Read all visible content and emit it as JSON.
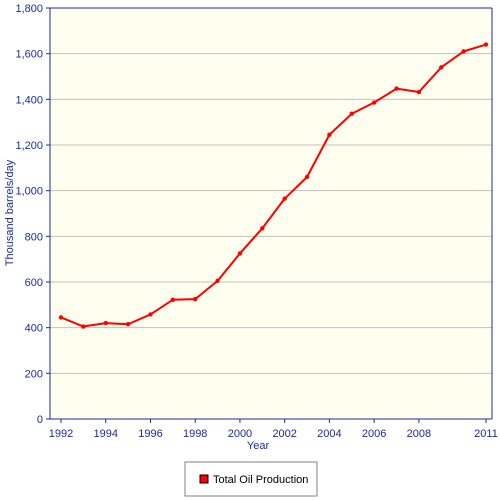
{
  "chart_data": {
    "type": "line",
    "xlabel": "Year",
    "ylabel": "Thousand barrels/day",
    "xlim": [
      1992,
      2011
    ],
    "ylim": [
      0,
      1800
    ],
    "x_ticks": [
      1992,
      1994,
      1996,
      1998,
      2000,
      2002,
      2004,
      2006,
      2008,
      2011
    ],
    "x_tick_labels": [
      "1992",
      "1994",
      "1996",
      "1998",
      "2000",
      "2002",
      "2004",
      "2006",
      "2008",
      "2011"
    ],
    "y_ticks": [
      0,
      200,
      400,
      600,
      800,
      1000,
      1200,
      1400,
      1600,
      1800
    ],
    "y_tick_labels": [
      "0",
      "200",
      "400",
      "600",
      "800",
      "1,000",
      "1,200",
      "1,400",
      "1,600",
      "1,800"
    ],
    "grid": true,
    "legend_position": "bottom-center",
    "series": [
      {
        "name": "Total Oil Production",
        "color": "#ff0000",
        "x": [
          1992,
          1993,
          1994,
          1995,
          1996,
          1997,
          1998,
          1999,
          2000,
          2001,
          2002,
          2003,
          2004,
          2005,
          2006,
          2007,
          2008,
          2009,
          2010,
          2011
        ],
        "values": [
          445,
          405,
          420,
          415,
          458,
          522,
          525,
          605,
          725,
          835,
          965,
          1060,
          1245,
          1337,
          1386,
          1447,
          1432,
          1540,
          1610,
          1640
        ]
      }
    ],
    "colors": {
      "plot_background": "#fffff0",
      "axis": "#1f2a9a",
      "grid": "#c0c0c0"
    }
  }
}
